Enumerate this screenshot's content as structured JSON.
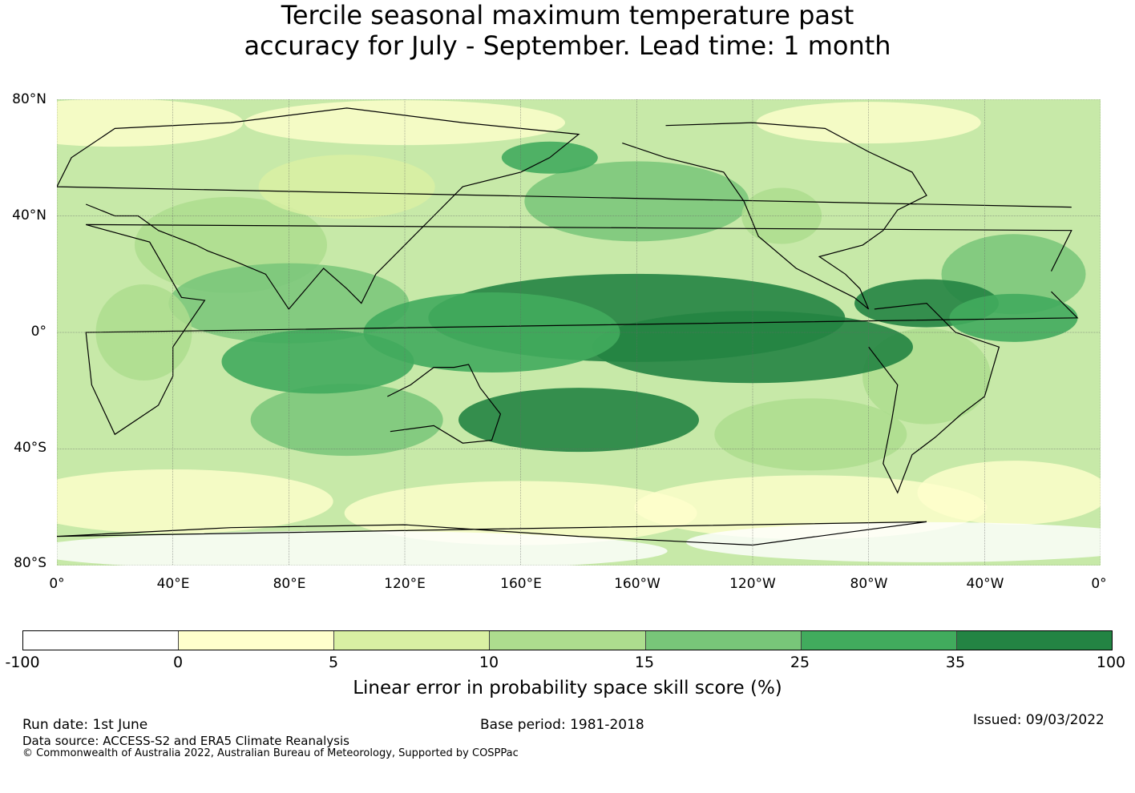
{
  "title": {
    "line1": "Tercile seasonal maximum temperature past",
    "line2": "accuracy for July - September. Lead time: 1 month"
  },
  "map": {
    "lat_labels": [
      "80°N",
      "40°N",
      "0°",
      "40°S",
      "80°S"
    ],
    "lon_labels": [
      "0°",
      "40°E",
      "80°E",
      "120°E",
      "160°E",
      "160°W",
      "120°W",
      "80°W",
      "40°W",
      "0°"
    ],
    "colors": {
      "ocean_base": "#a9dc8c",
      "coastline": "#000000",
      "gridline": "#666666"
    }
  },
  "legend": {
    "ticks": [
      "-100",
      "0",
      "5",
      "10",
      "15",
      "25",
      "35",
      "100"
    ],
    "colors": [
      "#ffffff",
      "#ffffcc",
      "#d9f0a3",
      "#addd8e",
      "#78c679",
      "#41ab5d",
      "#238443"
    ],
    "label": "Linear error in probability space skill score (%)"
  },
  "footer": {
    "run_date": "Run date: 1st June",
    "base_period": "Base period: 1981-2018",
    "issued": "Issued: 09/03/2022",
    "data_source": "Data source: ACCESS-S2 and ERA5 Climate Reanalysis",
    "copyright": "© Commonwealth of Australia 2022, Australian Bureau of Meteorology, Supported by COSPPac"
  }
}
